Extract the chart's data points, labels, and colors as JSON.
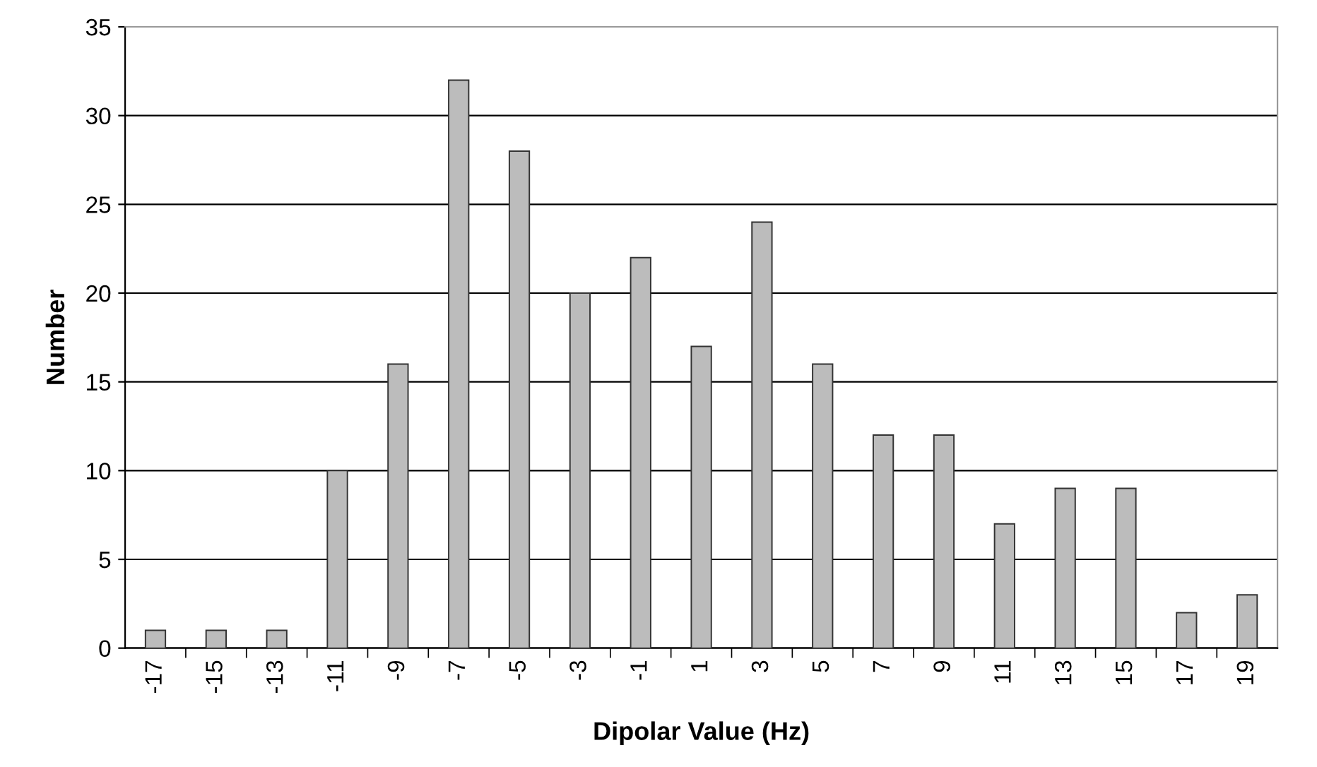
{
  "chart_data": {
    "type": "bar",
    "xlabel": "Dipolar Value (Hz)",
    "ylabel": "Number",
    "categories": [
      "-17",
      "-15",
      "-13",
      "-11",
      "-9",
      "-7",
      "-5",
      "-3",
      "-1",
      "1",
      "3",
      "5",
      "7",
      "9",
      "11",
      "13",
      "15",
      "17",
      "19"
    ],
    "values": [
      1,
      1,
      1,
      10,
      16,
      32,
      28,
      20,
      22,
      17,
      24,
      16,
      12,
      12,
      7,
      9,
      9,
      2,
      3
    ],
    "color": "#bcbcbc",
    "ylim": [
      0,
      35
    ],
    "yticks": [
      0,
      5,
      10,
      15,
      20,
      25,
      30,
      35
    ],
    "grid": "y"
  }
}
